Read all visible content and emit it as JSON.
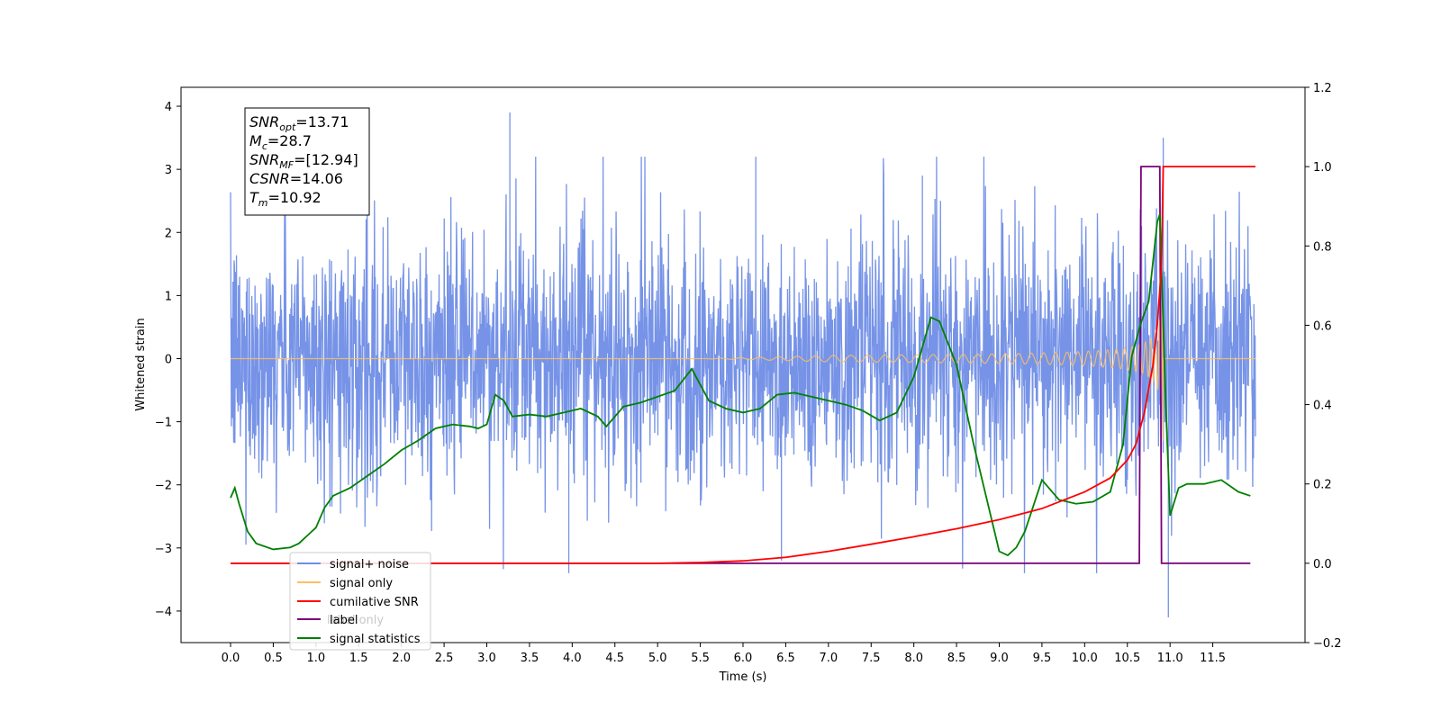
{
  "chart_data": {
    "type": "line",
    "title": "",
    "xlabel": "Time (s)",
    "ylabel_left": "Whitened strain",
    "ylabel_right": "",
    "xlim": [
      -0.58,
      12.58
    ],
    "ylim_left": [
      -4.5,
      4.3
    ],
    "ylim_right": [
      -0.2,
      1.2
    ],
    "x_ticks": [
      "0.0",
      "0.5",
      "1.0",
      "1.5",
      "2.0",
      "2.5",
      "3.0",
      "3.5",
      "4.0",
      "4.5",
      "5.0",
      "5.5",
      "6.0",
      "6.5",
      "7.0",
      "7.5",
      "8.0",
      "8.5",
      "9.0",
      "9.5",
      "10.0",
      "10.5",
      "11.0",
      "11.5"
    ],
    "y_ticks_left": [
      "4",
      "3",
      "2",
      "1",
      "0",
      "−1",
      "−2",
      "−3",
      "−4"
    ],
    "y_ticks_right": [
      "1.2",
      "1.0",
      "0.8",
      "0.6",
      "0.4",
      "0.2",
      "0.0",
      "−0.2"
    ],
    "grid": false,
    "legend_position": "lower-left",
    "annotation": {
      "lines": [
        {
          "sym": "SNR",
          "sub": "opt",
          "value": "=13.71"
        },
        {
          "sym": "M",
          "sub": "c",
          "value": "=28.7"
        },
        {
          "sym": "SNR",
          "sub": "MF",
          "value": "=[12.94]"
        },
        {
          "sym": "CSNR",
          "sub": "",
          "value": "=14.06"
        },
        {
          "sym": "T",
          "sub": "m",
          "value": "=10.92"
        }
      ]
    },
    "series": [
      {
        "name": "signal+ noise",
        "color": "#6f8de6",
        "axis": "left",
        "description": "whitened noise, amplitude about ±1.5 with spikes up to 3.9 and down to -4.1, from 0 to 12 s"
      },
      {
        "name": "signal only",
        "color": "#ffbf60",
        "axis": "left",
        "description": "chirp growing from near 0 after 6 s to about ±1.3 at 10.92 s, then 0"
      },
      {
        "name": "cumilative SNR",
        "color": "#ff0000",
        "axis": "right",
        "x": [
          0.0,
          5.0,
          5.5,
          6.0,
          6.5,
          7.0,
          7.5,
          8.0,
          8.5,
          9.0,
          9.5,
          10.0,
          10.3,
          10.5,
          10.6,
          10.7,
          10.8,
          10.85,
          10.9,
          10.92,
          12.0
        ],
        "values": [
          0.0,
          0.0,
          0.002,
          0.006,
          0.015,
          0.03,
          0.048,
          0.067,
          0.087,
          0.11,
          0.138,
          0.18,
          0.215,
          0.26,
          0.3,
          0.38,
          0.5,
          0.6,
          0.75,
          1.0,
          1.0
        ]
      },
      {
        "name": "label",
        "color": "#7a007a",
        "axis": "right",
        "x": [
          0.0,
          10.64,
          10.66,
          10.88,
          10.9,
          11.94
        ],
        "values": [
          0.0,
          0.0,
          1.0,
          1.0,
          0.0,
          0.0
        ]
      },
      {
        "name": "label only",
        "color": "#cccccc",
        "axis": "right",
        "hidden": true
      },
      {
        "name": "signal statistics",
        "color": "#008000",
        "axis": "right",
        "x": [
          0.0,
          0.05,
          0.1,
          0.2,
          0.3,
          0.5,
          0.7,
          0.8,
          0.9,
          1.0,
          1.1,
          1.2,
          1.4,
          1.6,
          1.8,
          2.0,
          2.2,
          2.4,
          2.6,
          2.8,
          2.9,
          3.0,
          3.1,
          3.2,
          3.3,
          3.5,
          3.7,
          3.9,
          4.1,
          4.3,
          4.4,
          4.6,
          4.8,
          5.0,
          5.2,
          5.4,
          5.6,
          5.8,
          6.0,
          6.2,
          6.4,
          6.6,
          6.8,
          7.0,
          7.2,
          7.4,
          7.6,
          7.8,
          8.0,
          8.2,
          8.3,
          8.5,
          8.7,
          8.9,
          9.0,
          9.1,
          9.2,
          9.3,
          9.5,
          9.7,
          9.9,
          10.1,
          10.3,
          10.45,
          10.55,
          10.65,
          10.75,
          10.85,
          10.88,
          10.95,
          11.0,
          11.1,
          11.2,
          11.4,
          11.6,
          11.8,
          11.94
        ],
        "values": [
          0.165,
          0.19,
          0.15,
          0.08,
          0.05,
          0.035,
          0.04,
          0.05,
          0.07,
          0.09,
          0.14,
          0.17,
          0.19,
          0.22,
          0.25,
          0.285,
          0.31,
          0.34,
          0.35,
          0.345,
          0.34,
          0.35,
          0.425,
          0.41,
          0.37,
          0.375,
          0.37,
          0.38,
          0.39,
          0.37,
          0.345,
          0.395,
          0.405,
          0.42,
          0.435,
          0.49,
          0.41,
          0.39,
          0.38,
          0.39,
          0.425,
          0.43,
          0.42,
          0.41,
          0.4,
          0.385,
          0.36,
          0.38,
          0.47,
          0.62,
          0.61,
          0.5,
          0.3,
          0.12,
          0.03,
          0.02,
          0.04,
          0.08,
          0.21,
          0.16,
          0.15,
          0.155,
          0.18,
          0.3,
          0.52,
          0.6,
          0.66,
          0.86,
          0.88,
          0.4,
          0.12,
          0.19,
          0.2,
          0.2,
          0.21,
          0.18,
          0.17
        ]
      }
    ]
  }
}
